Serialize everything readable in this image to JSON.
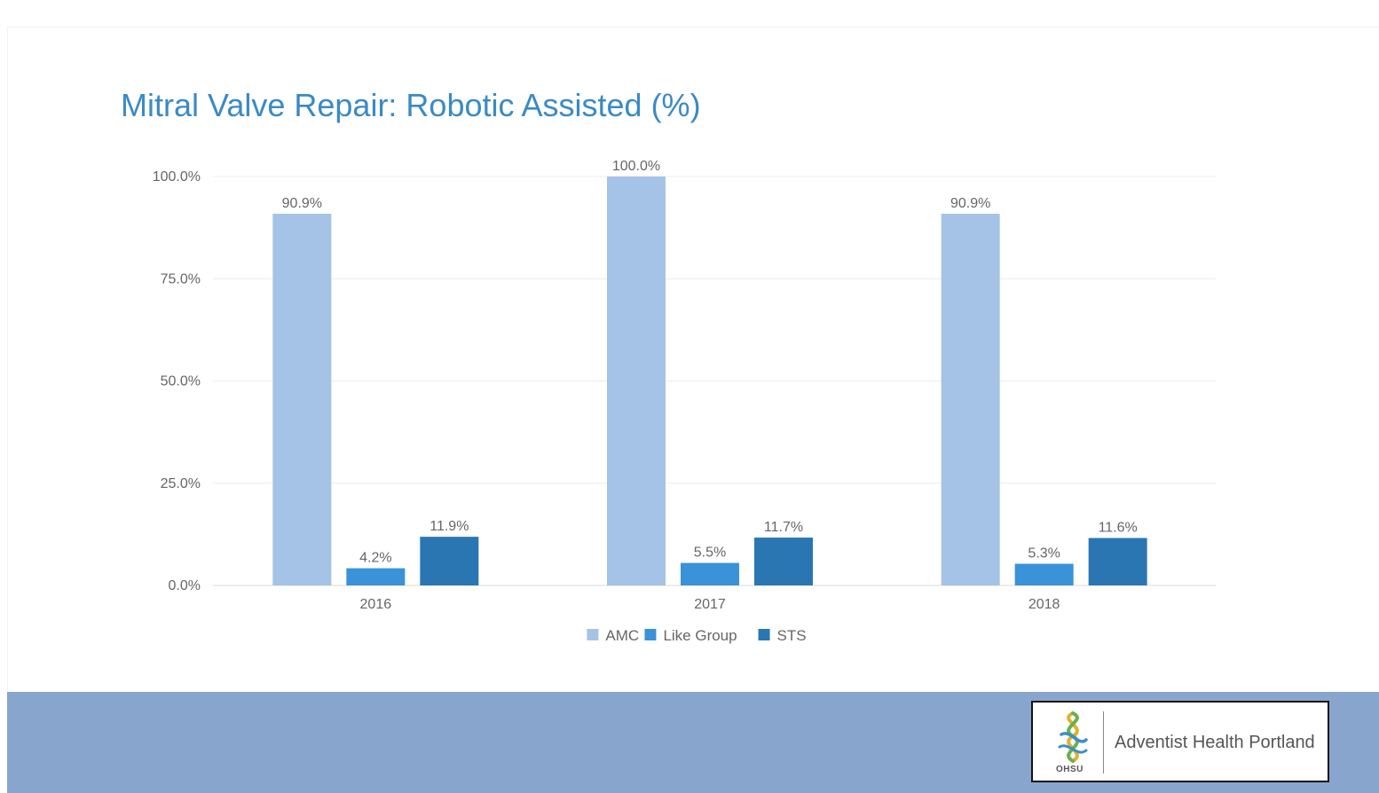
{
  "chart_data": {
    "type": "bar",
    "title": "Mitral Valve Repair: Robotic Assisted (%)",
    "categories": [
      "2016",
      "2017",
      "2018"
    ],
    "series": [
      {
        "name": "AMC",
        "values": [
          90.9,
          100.0,
          90.9
        ],
        "labels": [
          "90.9%",
          "100.0%",
          "90.9%"
        ],
        "color": "#a5c3e6"
      },
      {
        "name": "Like Group",
        "values": [
          4.2,
          5.5,
          5.3
        ],
        "labels": [
          "4.2%",
          "5.5%",
          "5.3%"
        ],
        "color": "#3a92d8"
      },
      {
        "name": "STS",
        "values": [
          11.9,
          11.7,
          11.6
        ],
        "labels": [
          "11.9%",
          "11.7%",
          "11.6%"
        ],
        "color": "#2a76b3"
      }
    ],
    "yticks": [
      0,
      25,
      50,
      75,
      100
    ],
    "ytick_labels": [
      "0.0%",
      "25.0%",
      "50.0%",
      "75.0%",
      "100.0%"
    ],
    "ylim": [
      0,
      100
    ],
    "grid": true,
    "legend_position": "bottom"
  },
  "footer": {
    "logo_label": "OHSU",
    "org_name": "Adventist Health Portland",
    "background_color": "#88a5ce"
  }
}
